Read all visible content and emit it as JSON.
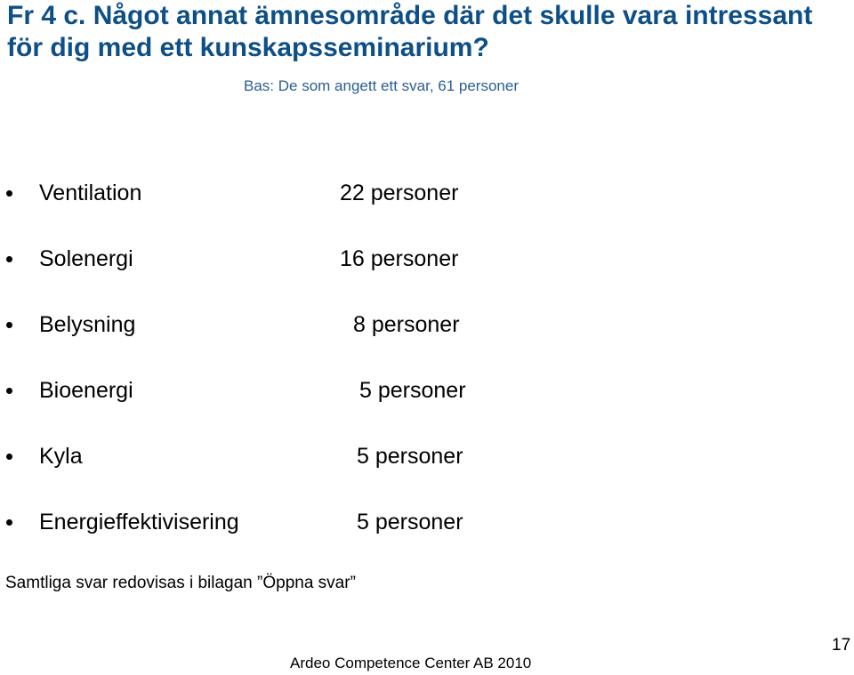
{
  "slide": {
    "title": "Fr 4 c. Något annat ämnesområde där det skulle vara intressant för dig med ett kunskapsseminarium?",
    "subtitle": "Bas: De som angett ett svar, 61 personer",
    "items": [
      {
        "topic": "Ventilation",
        "count": "22 personer"
      },
      {
        "topic": "Solenergi",
        "count": "16 personer"
      },
      {
        "topic": "Belysning",
        "count": "8 personer"
      },
      {
        "topic": "Bioenergi",
        "count": "5 personer"
      },
      {
        "topic": "Kyla",
        "count": "5 personer"
      },
      {
        "topic": "Energieffektivisering",
        "count": "5 personer"
      }
    ],
    "footnote": "Samtliga svar redovisas i bilagan ”Öppna svar”",
    "footer": "Ardeo Competence Center AB 2010",
    "page_number": "17"
  },
  "colors": {
    "title": "#0d4f86",
    "subtitle": "#2a5e92",
    "text": "#000000",
    "background": "#ffffff"
  }
}
